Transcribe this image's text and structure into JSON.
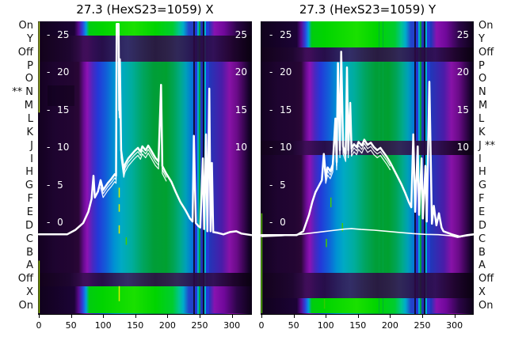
{
  "titles": {
    "left": "27.3 (HexS23=1059) X",
    "right": "27.3 (HexS23=1059) Y"
  },
  "row_labels": {
    "left": [
      "On",
      "Y",
      "Off",
      "P",
      "O",
      "N",
      "M",
      "L",
      "K",
      "J",
      "I",
      "H",
      "G",
      "F",
      "E",
      "D",
      "C",
      "B",
      "A",
      "Off",
      "X",
      "On"
    ],
    "right": [
      "On",
      "Y",
      "Off",
      "P",
      "O",
      "N",
      "M",
      "L",
      "K",
      "J",
      "I",
      "H",
      "G",
      "F",
      "E",
      "D",
      "C",
      "B",
      "A",
      "Off",
      "X",
      "On"
    ],
    "left_marker_index": 5,
    "right_marker_index": 9,
    "marker": "**"
  },
  "axes": {
    "x_ticks": [
      0,
      50,
      100,
      150,
      200,
      250,
      300
    ],
    "y_ticks": [
      25,
      20,
      15,
      10,
      5,
      0
    ],
    "y_ticks_right": [
      25,
      20,
      15,
      10
    ],
    "x_range": [
      0,
      330
    ],
    "y_value_range": [
      -12.2,
      26.8
    ]
  },
  "colors": {
    "trace": "#ffffff",
    "green": "#00a030",
    "bright_green": "#00d400",
    "purple": "#8d12b4",
    "blue": "#2438d8",
    "cyan": "#00aac4",
    "dark_purple": "#16032a",
    "dash_yellow": "#ddee00",
    "dash_green": "#44cc00",
    "background": "#ffffff",
    "text": "#000000"
  },
  "chart_data": [
    {
      "type": "heatmap+line",
      "title": "27.3 (HexS23=1059) X",
      "x_range": [
        0,
        330
      ],
      "value_range": [
        -12.2,
        26.8
      ],
      "heatmap_bands": {
        "bright_rows": [
          "On (top)",
          "X",
          "On (bottom)"
        ],
        "dark_rows": [
          "Y",
          "Off (top)",
          "Off (bottom)"
        ],
        "column_pattern": [
          "near-black",
          "purple",
          "blue",
          "azure",
          "teal",
          "green",
          "teal",
          "azure",
          "blue",
          "stripe-cluster",
          "purple",
          "near-black"
        ]
      },
      "series": [
        {
          "name": "beam-profile-x",
          "width": 2.5,
          "points": [
            [
              0,
              -1.5
            ],
            [
              44,
              -1.5
            ],
            [
              57,
              -0.9
            ],
            [
              69,
              0
            ],
            [
              77,
              1.5
            ],
            [
              82,
              3.2
            ],
            [
              85,
              6.3
            ],
            [
              87,
              3.4
            ],
            [
              92,
              4.2
            ],
            [
              96,
              5.7
            ],
            [
              100,
              4.4
            ],
            [
              107,
              5.3
            ],
            [
              113,
              5.9
            ],
            [
              118,
              6.5
            ],
            [
              120,
              6.3
            ],
            [
              121,
              26.5
            ],
            [
              124,
              26.5
            ],
            [
              125,
              15
            ],
            [
              126,
              21.8
            ],
            [
              128,
              9.7
            ],
            [
              132,
              7.1
            ],
            [
              134,
              7.8
            ],
            [
              139,
              8.6
            ],
            [
              144,
              9.1
            ],
            [
              149,
              9.6
            ],
            [
              154,
              10
            ],
            [
              158,
              9.5
            ],
            [
              161,
              10.2
            ],
            [
              166,
              9.7
            ],
            [
              170,
              10.3
            ],
            [
              175,
              9.6
            ],
            [
              181,
              8.7
            ],
            [
              186,
              8.2
            ],
            [
              190,
              18.4
            ],
            [
              192,
              7.6
            ],
            [
              198,
              6.6
            ],
            [
              206,
              5.5
            ],
            [
              213,
              4.1
            ],
            [
              220,
              2.8
            ],
            [
              228,
              1.7
            ],
            [
              235,
              0.6
            ],
            [
              239,
              0.2
            ],
            [
              241,
              11.6
            ],
            [
              244,
              0
            ],
            [
              248,
              -0.4
            ],
            [
              251,
              -0.6
            ],
            [
              255,
              8.6
            ],
            [
              257,
              -0.8
            ],
            [
              260,
              11.8
            ],
            [
              262,
              -1.1
            ],
            [
              265,
              17.9
            ],
            [
              267,
              -1.1
            ],
            [
              269,
              8
            ],
            [
              271,
              -1.2
            ],
            [
              278,
              -1.3
            ],
            [
              287,
              -1.5
            ],
            [
              297,
              -1.2
            ],
            [
              307,
              -1.1
            ],
            [
              315,
              -1.4
            ],
            [
              330,
              -1.6
            ]
          ]
        }
      ],
      "echo": {
        "x_min": 95,
        "x_max": 200,
        "offsets": [
          -0.5,
          -1.0
        ]
      },
      "dashes": [
        [
          125,
          4.7,
          3.4,
          "#ddee00"
        ],
        [
          125,
          2.5,
          1.5,
          "#ddee00"
        ],
        [
          125,
          -0.3,
          -1.4,
          "#ddee00"
        ],
        [
          136,
          -1.9,
          -2.9,
          "#44cc00"
        ],
        [
          125,
          -8.4,
          -10.4,
          "#ddee00"
        ],
        [
          0.5,
          26.8,
          14.7,
          "#aacc22"
        ],
        [
          0.5,
          -5,
          -12,
          "#88bb00"
        ]
      ]
    },
    {
      "type": "heatmap+line",
      "title": "27.3 (HexS23=1059) Y",
      "x_range": [
        0,
        330
      ],
      "value_range": [
        -12.2,
        26.8
      ],
      "heatmap_bands": {
        "bright_rows": [
          "On (top)",
          "On (bottom)"
        ],
        "dark_rows": [
          "Y",
          "Off (top)",
          "J",
          "Off (bottom)",
          "X"
        ],
        "column_pattern": [
          "near-black",
          "purple",
          "blue",
          "azure",
          "teal",
          "green",
          "teal",
          "azure",
          "blue",
          "stripe-cluster",
          "purple",
          "near-black"
        ]
      },
      "series": [
        {
          "name": "beam-profile-y",
          "width": 2.5,
          "points": [
            [
              0,
              -1.6
            ],
            [
              55,
              -1.6
            ],
            [
              65,
              -1.1
            ],
            [
              74,
              1.1
            ],
            [
              79,
              2.8
            ],
            [
              84,
              4.1
            ],
            [
              89,
              4.9
            ],
            [
              94,
              5.7
            ],
            [
              97,
              9.2
            ],
            [
              100,
              6.3
            ],
            [
              103,
              7.4
            ],
            [
              107,
              6.9
            ],
            [
              111,
              7.8
            ],
            [
              115,
              13.9
            ],
            [
              117,
              8.1
            ],
            [
              119,
              21.3
            ],
            [
              122,
              9.7
            ],
            [
              124,
              22.8
            ],
            [
              127,
              10.2
            ],
            [
              131,
              9.2
            ],
            [
              133,
              20.7
            ],
            [
              135,
              9.7
            ],
            [
              138,
              16
            ],
            [
              140,
              9.9
            ],
            [
              144,
              10.5
            ],
            [
              148,
              10.1
            ],
            [
              151,
              10.8
            ],
            [
              156,
              10.3
            ],
            [
              160,
              11.1
            ],
            [
              165,
              10.4
            ],
            [
              170,
              10.7
            ],
            [
              175,
              10.1
            ],
            [
              180,
              9.7
            ],
            [
              185,
              10
            ],
            [
              190,
              9.4
            ],
            [
              195,
              8.8
            ],
            [
              200,
              8.1
            ],
            [
              206,
              7.1
            ],
            [
              212,
              6.1
            ],
            [
              218,
              5.1
            ],
            [
              224,
              3.9
            ],
            [
              229,
              2.8
            ],
            [
              233,
              2.1
            ],
            [
              236,
              11.8
            ],
            [
              239,
              1.5
            ],
            [
              243,
              10.2
            ],
            [
              245,
              1.1
            ],
            [
              249,
              8.6
            ],
            [
              251,
              0.6
            ],
            [
              255,
              7.6
            ],
            [
              257,
              0.2
            ],
            [
              261,
              18.8
            ],
            [
              265,
              -0.1
            ],
            [
              268,
              2.3
            ],
            [
              272,
              -0.3
            ],
            [
              276,
              1.3
            ],
            [
              280,
              -0.6
            ],
            [
              283,
              -1.1
            ],
            [
              296,
              -1.5
            ],
            [
              308,
              -1.8
            ],
            [
              320,
              -1.6
            ],
            [
              330,
              -1.5
            ]
          ]
        },
        {
          "name": "baseline-profile-y",
          "width": 1.6,
          "points": [
            [
              0,
              -1.8
            ],
            [
              30,
              -1.7
            ],
            [
              60,
              -1.5
            ],
            [
              90,
              -1.2
            ],
            [
              110,
              -1
            ],
            [
              130,
              -0.8
            ],
            [
              140,
              -0.75
            ],
            [
              155,
              -0.85
            ],
            [
              175,
              -0.95
            ],
            [
              195,
              -1.1
            ],
            [
              215,
              -1.25
            ],
            [
              235,
              -1.4
            ],
            [
              255,
              -1.5
            ],
            [
              275,
              -1.55
            ],
            [
              295,
              -1.7
            ],
            [
              305,
              -1.9
            ],
            [
              315,
              -1.75
            ],
            [
              330,
              -1.55
            ]
          ]
        }
      ],
      "echo": {
        "x_min": 95,
        "x_max": 205,
        "offsets": [
          -0.5,
          -1.0
        ]
      },
      "dashes": [
        [
          108,
          3.4,
          2.1,
          "#44cc00"
        ],
        [
          126,
          0,
          -1.1,
          "#44cc00"
        ],
        [
          101,
          -2.1,
          -3.2,
          "#44cc00"
        ],
        [
          98,
          -10.1,
          -11.4,
          "#33cc00"
        ],
        [
          0.5,
          1.3,
          -12,
          "#55bb00"
        ]
      ]
    }
  ]
}
